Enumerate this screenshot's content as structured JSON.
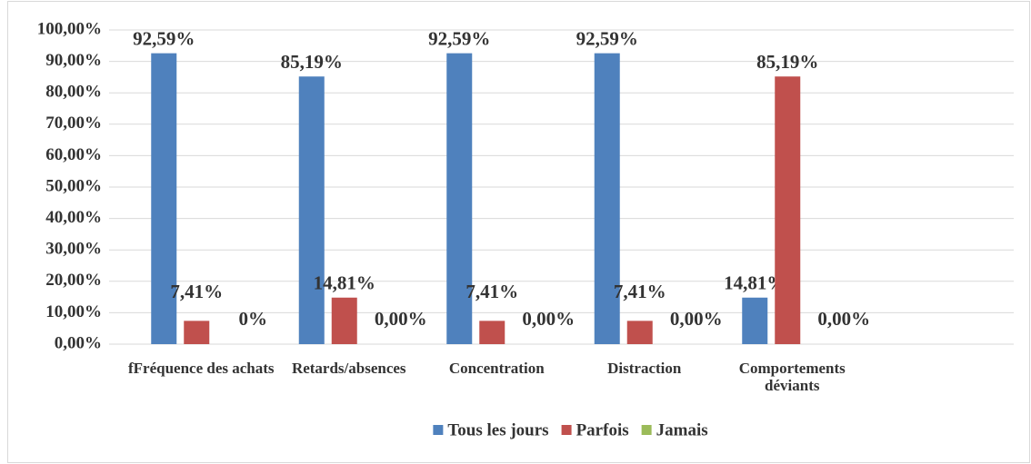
{
  "chart_data": {
    "type": "bar",
    "categories": [
      "fFréquence des achats",
      "Retards/absences",
      "Concentration",
      "Distraction",
      "Comportements déviants",
      null
    ],
    "series": [
      {
        "name": "Tous les jours",
        "color": "#4f81bd",
        "values": [
          92.59,
          85.19,
          92.59,
          92.59,
          14.81,
          null
        ],
        "value_labels": [
          "92,59%",
          "85,19%",
          "92,59%",
          "92,59%",
          "14,81%",
          null
        ]
      },
      {
        "name": "Parfois",
        "color": "#c0504d",
        "values": [
          7.41,
          14.81,
          7.41,
          7.41,
          85.19,
          null
        ],
        "value_labels": [
          "7,41%",
          "14,81%",
          "7,41%",
          "7,41%",
          "85,19%",
          null
        ]
      },
      {
        "name": "Jamais",
        "color": "#9bbb59",
        "values": [
          0,
          0,
          0,
          0,
          0,
          null
        ],
        "value_labels": [
          "0%",
          "0,00%",
          "0,00%",
          "0,00%",
          "0,00%",
          null
        ]
      }
    ],
    "ylim": [
      0,
      100
    ],
    "yticks": [
      {
        "value": 0,
        "label": "0,00%"
      },
      {
        "value": 10,
        "label": "10,00%"
      },
      {
        "value": 20,
        "label": "20,00%"
      },
      {
        "value": 30,
        "label": "30,00%"
      },
      {
        "value": 40,
        "label": "40,00%"
      },
      {
        "value": 50,
        "label": "50,00%"
      },
      {
        "value": 60,
        "label": "60,00%"
      },
      {
        "value": 70,
        "label": "70,00%"
      },
      {
        "value": 80,
        "label": "80,00%"
      },
      {
        "value": 90,
        "label": "90,00%"
      },
      {
        "value": 100,
        "label": "100,00%"
      }
    ],
    "grid": true,
    "legend": "bottom"
  }
}
